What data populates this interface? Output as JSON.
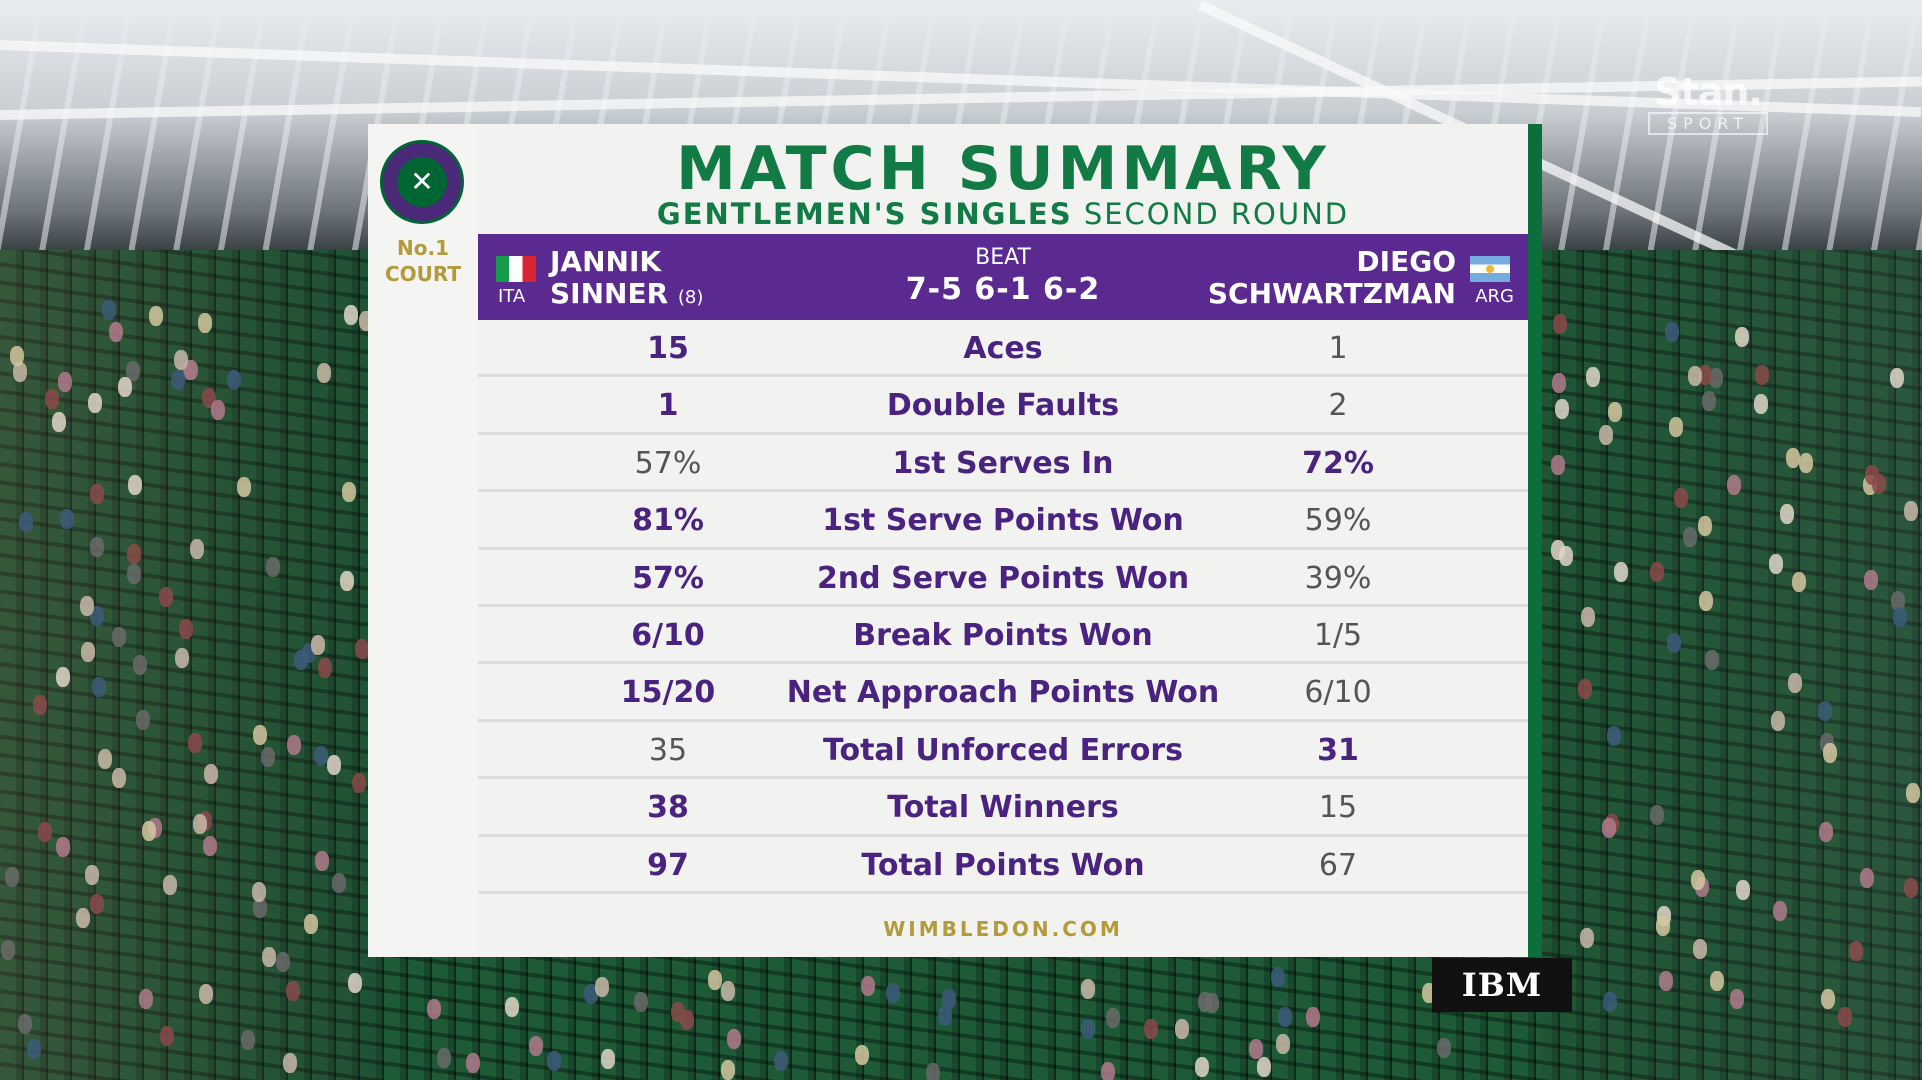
{
  "broadcaster": {
    "name": "Stan.",
    "sub": "SPORT"
  },
  "court": {
    "line1": "No.1",
    "line2": "COURT"
  },
  "title": "MATCH SUMMARY",
  "subtitle": {
    "event": "GENTLEMEN'S SINGLES",
    "round": "SECOND ROUND"
  },
  "match": {
    "player1": {
      "first": "JANNIK",
      "last": "SINNER",
      "seed": "(8)",
      "country": "ITA"
    },
    "player2": {
      "first": "DIEGO",
      "last": "SCHWARTZMAN",
      "country": "ARG"
    },
    "result_word": "BEAT",
    "score": "7-5 6-1 6-2"
  },
  "stats": [
    {
      "label": "Aces",
      "p1": "15",
      "p2": "1",
      "leader": "p1"
    },
    {
      "label": "Double Faults",
      "p1": "1",
      "p2": "2",
      "leader": "p1"
    },
    {
      "label": "1st Serves In",
      "p1": "57%",
      "p2": "72%",
      "leader": "p2"
    },
    {
      "label": "1st Serve Points Won",
      "p1": "81%",
      "p2": "59%",
      "leader": "p1"
    },
    {
      "label": "2nd Serve Points Won",
      "p1": "57%",
      "p2": "39%",
      "leader": "p1"
    },
    {
      "label": "Break Points Won",
      "p1": "6/10",
      "p2": "1/5",
      "leader": "p1"
    },
    {
      "label": "Net Approach Points Won",
      "p1": "15/20",
      "p2": "6/10",
      "leader": "p1"
    },
    {
      "label": "Total Unforced Errors",
      "p1": "35",
      "p2": "31",
      "leader": "p2"
    },
    {
      "label": "Total Winners",
      "p1": "38",
      "p2": "15",
      "leader": "p1"
    },
    {
      "label": "Total Points Won",
      "p1": "97",
      "p2": "67",
      "leader": "p1"
    }
  ],
  "footer": "WIMBLEDON.COM",
  "sponsor": "IBM",
  "colors": {
    "purple": "#5b2a91",
    "green": "#127a45",
    "gold": "#b39a3a"
  }
}
